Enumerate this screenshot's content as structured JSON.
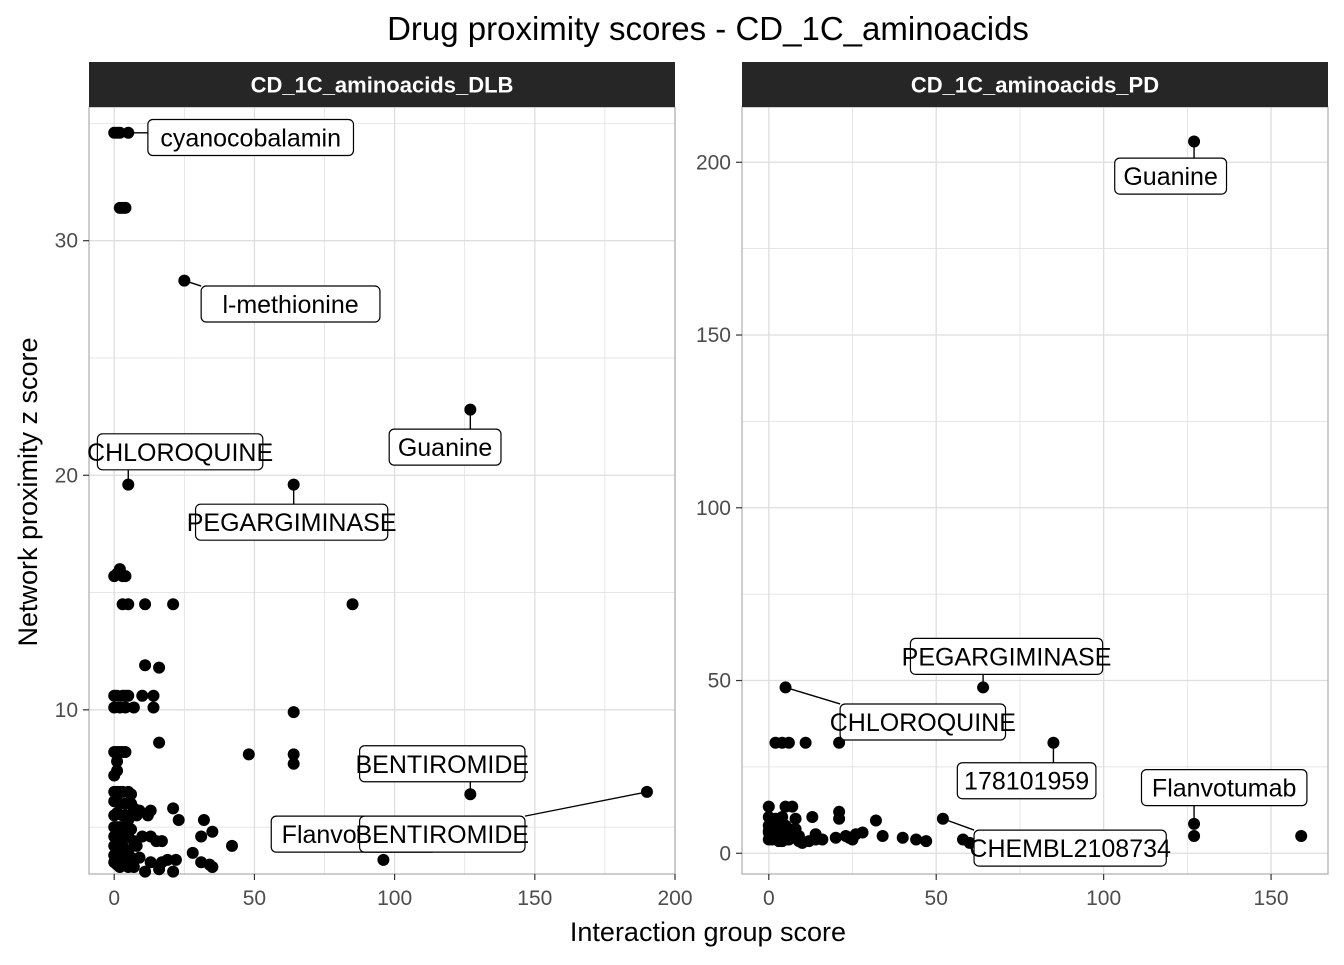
{
  "figure": {
    "title": "Drug proximity scores - CD_1C_aminoacids",
    "xlabel": "Interaction group score",
    "ylabel": "Network proximity z score"
  },
  "colors": {
    "strip": "#262626",
    "strip_text": "#ffffff",
    "grid": "#dedede",
    "border": "#b3b3b3",
    "point": "#000000",
    "label_border": "#000000",
    "text": "#000000",
    "tick_text": "#4d4d4d"
  },
  "chart_data": [
    {
      "type": "scatter",
      "panel": "CD_1C_aminoacids_DLB",
      "xlim": [
        -9,
        200
      ],
      "ylim": [
        3,
        35.7
      ],
      "x_ticks": [
        0,
        50,
        100,
        150,
        200
      ],
      "y_ticks": [
        10,
        20,
        30
      ],
      "grid": true,
      "points": [
        [
          0,
          34.6
        ],
        [
          1,
          34.6
        ],
        [
          2,
          34.6
        ],
        [
          5,
          34.6
        ],
        [
          2,
          31.4
        ],
        [
          3,
          31.4
        ],
        [
          4,
          31.4
        ],
        [
          25,
          28.3
        ],
        [
          127,
          22.8
        ],
        [
          5,
          19.6
        ],
        [
          64,
          19.6
        ],
        [
          1,
          15.8
        ],
        [
          0,
          15.7
        ],
        [
          2,
          16.0
        ],
        [
          3,
          15.7
        ],
        [
          4,
          15.7
        ],
        [
          3,
          14.5
        ],
        [
          5,
          14.5
        ],
        [
          11,
          14.5
        ],
        [
          21,
          14.5
        ],
        [
          85,
          14.5
        ],
        [
          11,
          11.9
        ],
        [
          16,
          11.8
        ],
        [
          0,
          10.6
        ],
        [
          1,
          10.6
        ],
        [
          3,
          10.6
        ],
        [
          4,
          10.6
        ],
        [
          5,
          10.6
        ],
        [
          10,
          10.6
        ],
        [
          14,
          10.6
        ],
        [
          0,
          10.1
        ],
        [
          2,
          10.1
        ],
        [
          4,
          10.1
        ],
        [
          7,
          10.1
        ],
        [
          14,
          10.1
        ],
        [
          64,
          9.9
        ],
        [
          16,
          8.6
        ],
        [
          0,
          8.2
        ],
        [
          1,
          8.2
        ],
        [
          2,
          8.2
        ],
        [
          3,
          8.2
        ],
        [
          4,
          8.2
        ],
        [
          48,
          8.1
        ],
        [
          64,
          8.1
        ],
        [
          64,
          7.7
        ],
        [
          1,
          7.8
        ],
        [
          0,
          7.2
        ],
        [
          1,
          7.4
        ],
        [
          0,
          6.5
        ],
        [
          1,
          6.5
        ],
        [
          2,
          6.5
        ],
        [
          3,
          6.5
        ],
        [
          5,
          6.5
        ],
        [
          6,
          6.4
        ],
        [
          127,
          6.4
        ],
        [
          190,
          6.5
        ],
        [
          0,
          6.1
        ],
        [
          1,
          6.1
        ],
        [
          2,
          6.0
        ],
        [
          4,
          6.0
        ],
        [
          6,
          6.0
        ],
        [
          7,
          5.8
        ],
        [
          9,
          5.7
        ],
        [
          13,
          5.7
        ],
        [
          21,
          5.8
        ],
        [
          0,
          5.5
        ],
        [
          1,
          5.6
        ],
        [
          3,
          5.5
        ],
        [
          4,
          5.5
        ],
        [
          5,
          5.3
        ],
        [
          8,
          5.5
        ],
        [
          12,
          5.5
        ],
        [
          23,
          5.3
        ],
        [
          32,
          5.3
        ],
        [
          0,
          5.0
        ],
        [
          1,
          5.0
        ],
        [
          2,
          5.0
        ],
        [
          3,
          5.0
        ],
        [
          4,
          5.0
        ],
        [
          6,
          4.9
        ],
        [
          35,
          4.8
        ],
        [
          0,
          4.6
        ],
        [
          1,
          4.6
        ],
        [
          2,
          4.5
        ],
        [
          4,
          4.6
        ],
        [
          5,
          4.6
        ],
        [
          7,
          4.4
        ],
        [
          10,
          4.6
        ],
        [
          13,
          4.6
        ],
        [
          15,
          4.4
        ],
        [
          17,
          4.4
        ],
        [
          31,
          4.6
        ],
        [
          42,
          4.2
        ],
        [
          0,
          4.2
        ],
        [
          1,
          4.2
        ],
        [
          3,
          4.2
        ],
        [
          5,
          4.0
        ],
        [
          8,
          4.2
        ],
        [
          64,
          4.2
        ],
        [
          28,
          3.9
        ],
        [
          0,
          3.8
        ],
        [
          1,
          3.8
        ],
        [
          2,
          3.8
        ],
        [
          3,
          3.8
        ],
        [
          4,
          3.7
        ],
        [
          6,
          3.7
        ],
        [
          9,
          3.7
        ],
        [
          13,
          3.5
        ],
        [
          17,
          3.5
        ],
        [
          19,
          3.6
        ],
        [
          22,
          3.6
        ],
        [
          31,
          3.5
        ],
        [
          34,
          3.4
        ],
        [
          35,
          3.3
        ],
        [
          96,
          3.6
        ],
        [
          0,
          3.5
        ],
        [
          1,
          3.4
        ],
        [
          2,
          3.3
        ],
        [
          5,
          3.3
        ],
        [
          7,
          3.3
        ],
        [
          11,
          3.1
        ],
        [
          16,
          3.2
        ],
        [
          21,
          3.1
        ]
      ],
      "labels": [
        {
          "text": "cyanocobalamin",
          "x": 5,
          "y": 34.6,
          "lx": 12,
          "ly": 34.4,
          "align": "start"
        },
        {
          "text": "l-methionine",
          "x": 25,
          "y": 28.3,
          "lx": 31,
          "ly": 27.3,
          "align": "start"
        },
        {
          "text": "Guanine",
          "x": 127,
          "y": 22.8,
          "lx": 118,
          "ly": 21.2,
          "align": "middle"
        },
        {
          "text": "CHLOROQUINE",
          "x": 5,
          "y": 19.6,
          "lx": -6,
          "ly": 21.0,
          "align": "start"
        },
        {
          "text": "PEGARGIMINASE",
          "x": 64,
          "y": 19.6,
          "lx": 29,
          "ly": 18.0,
          "align": "start"
        },
        {
          "text": "BENTIROMIDE",
          "x": 127,
          "y": 6.4,
          "lx": 117,
          "ly": 7.7,
          "align": "middle"
        },
        {
          "text": "Flanvotumab",
          "x": 64,
          "y": 4.2,
          "lx": 56,
          "ly": 4.7,
          "align": "start"
        },
        {
          "text": "BENTIROMIDE",
          "x": 190,
          "y": 6.5,
          "lx": 117,
          "ly": 4.7,
          "align": "middle"
        }
      ]
    },
    {
      "type": "scatter",
      "panel": "CD_1C_aminoacids_PD",
      "xlim": [
        -8,
        167
      ],
      "ylim": [
        -6,
        216
      ],
      "x_ticks": [
        0,
        50,
        100,
        150
      ],
      "y_ticks": [
        0,
        50,
        100,
        150,
        200
      ],
      "grid": true,
      "points": [
        [
          127,
          206
        ],
        [
          5,
          48
        ],
        [
          64,
          48
        ],
        [
          85,
          32
        ],
        [
          21,
          32
        ],
        [
          2,
          32
        ],
        [
          4,
          32
        ],
        [
          6,
          32
        ],
        [
          11,
          32
        ],
        [
          0,
          13.5
        ],
        [
          5,
          13.5
        ],
        [
          7,
          13.5
        ],
        [
          21,
          12
        ],
        [
          0,
          10.5
        ],
        [
          2,
          10
        ],
        [
          4,
          10.5
        ],
        [
          8,
          10
        ],
        [
          13,
          10.5
        ],
        [
          21,
          10
        ],
        [
          32,
          9.5
        ],
        [
          52,
          10
        ],
        [
          0,
          8
        ],
        [
          1,
          8
        ],
        [
          2,
          7.5
        ],
        [
          3,
          8
        ],
        [
          4,
          7.5
        ],
        [
          5,
          8
        ],
        [
          6,
          7
        ],
        [
          8,
          7
        ],
        [
          127,
          8.5
        ],
        [
          0,
          6
        ],
        [
          1,
          6
        ],
        [
          2,
          5.5
        ],
        [
          3,
          6
        ],
        [
          4,
          6
        ],
        [
          5,
          5
        ],
        [
          7,
          6
        ],
        [
          9,
          5
        ],
        [
          14,
          5.5
        ],
        [
          23,
          5
        ],
        [
          28,
          6
        ],
        [
          0,
          4
        ],
        [
          1,
          4
        ],
        [
          3,
          3.5
        ],
        [
          4,
          3.5
        ],
        [
          5,
          4
        ],
        [
          6,
          4
        ],
        [
          9,
          3.5
        ],
        [
          14,
          4
        ],
        [
          25,
          4
        ],
        [
          47,
          3.5
        ],
        [
          127,
          5
        ],
        [
          159,
          5
        ],
        [
          0,
          6.5
        ],
        [
          2,
          4.5
        ],
        [
          4,
          5
        ],
        [
          6,
          4.5
        ],
        [
          8,
          4.5
        ],
        [
          10,
          3
        ],
        [
          12,
          3.5
        ],
        [
          16,
          4
        ],
        [
          20,
          4.5
        ],
        [
          24,
          4.5
        ],
        [
          26,
          5.5
        ],
        [
          34,
          5
        ],
        [
          40,
          4.5
        ],
        [
          44,
          4
        ],
        [
          58,
          4
        ],
        [
          60,
          3
        ]
      ],
      "labels": [
        {
          "text": "Guanine",
          "x": 127,
          "y": 206,
          "lx": 120,
          "ly": 196,
          "align": "middle"
        },
        {
          "text": "PEGARGIMINASE",
          "x": 64,
          "y": 48,
          "lx": 71,
          "ly": 57,
          "align": "middle"
        },
        {
          "text": "CHLOROQUINE",
          "x": 5,
          "y": 48,
          "lx": 46,
          "ly": 38,
          "align": "middle"
        },
        {
          "text": "178101959",
          "x": 85,
          "y": 32,
          "lx": 77,
          "ly": 21,
          "align": "middle"
        },
        {
          "text": "Flanvotumab",
          "x": 127,
          "y": 8.5,
          "lx": 136,
          "ly": 19,
          "align": "middle"
        },
        {
          "text": "CHEMBL2108734",
          "x": 52,
          "y": 10,
          "lx": 90,
          "ly": 1.5,
          "align": "middle"
        }
      ]
    }
  ]
}
